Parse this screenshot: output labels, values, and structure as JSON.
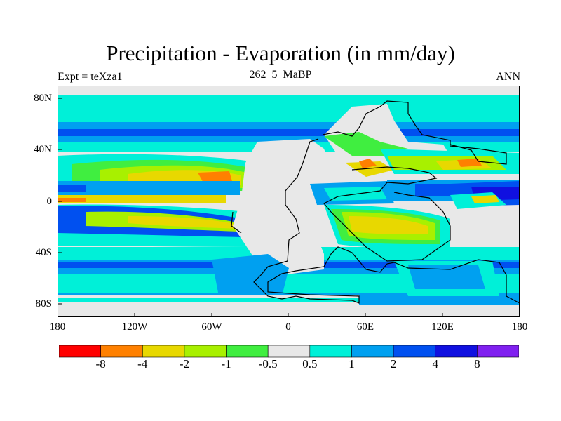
{
  "title": "Precipitation - Evaporation (in mm/day)",
  "subtitle_left": "Expt = teXza1",
  "subtitle_center": "262_5_MaBP",
  "subtitle_right": "ANN",
  "y_ticks": [
    "80N",
    "40N",
    "0",
    "40S",
    "80S"
  ],
  "x_ticks": [
    "180",
    "120W",
    "60W",
    "0",
    "60E",
    "120E",
    "180"
  ],
  "colorbar": {
    "labels": [
      "-8",
      "-4",
      "-2",
      "-1",
      "-0.5",
      "0.5",
      "1",
      "2",
      "4",
      "8"
    ],
    "colors": [
      "#ff0000",
      "#ff8000",
      "#e8d800",
      "#a8f000",
      "#40ee40",
      "#e8e8e8",
      "#00f0d8",
      "#00a0f0",
      "#0050f0",
      "#1010e0",
      "#8020f0"
    ]
  },
  "map_colors": {
    "neutral": "#e8e8e8",
    "cyan": "#00f0d8",
    "lightblue": "#00a0f0",
    "blue": "#0050f0",
    "darkblue": "#1010e0",
    "green": "#40ee40",
    "lightgreen": "#a8f000",
    "yellow": "#e8d800",
    "orange": "#ff8000",
    "red": "#ff0000"
  }
}
